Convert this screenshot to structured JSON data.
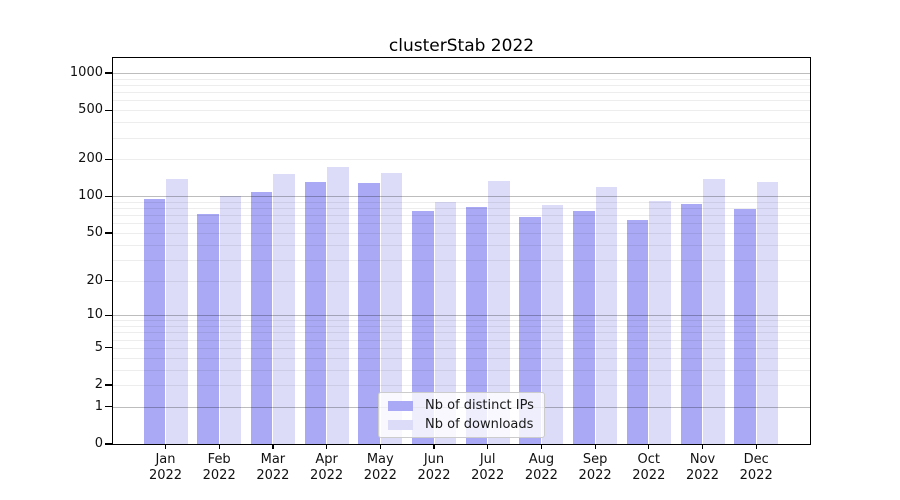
{
  "chart_data": {
    "type": "bar",
    "title": "clusterStab 2022",
    "categories": [
      "Jan",
      "Feb",
      "Mar",
      "Apr",
      "May",
      "Jun",
      "Jul",
      "Aug",
      "Sep",
      "Oct",
      "Nov",
      "Dec"
    ],
    "year_label": "2022",
    "series": [
      {
        "name": "Nb of distinct IPs",
        "color": "#a9a9f6",
        "values": [
          94,
          72,
          108,
          130,
          127,
          75,
          82,
          68,
          75,
          64,
          87,
          79
        ]
      },
      {
        "name": "Nb of downloads",
        "color": "#dcdcf9",
        "values": [
          137,
          100,
          153,
          172,
          155,
          90,
          134,
          85,
          119,
          92,
          137,
          130
        ]
      }
    ],
    "yscale": "log1p",
    "y_ticks": [
      1000,
      500,
      200,
      100,
      50,
      20,
      10,
      5,
      2,
      1,
      0
    ],
    "ylim": [
      0,
      1300
    ],
    "xlabel": "",
    "ylabel": "",
    "grid": "on",
    "legend_position": "lower-center",
    "colors": {
      "spine": "#000000",
      "tick_text": "#111111",
      "major_grid": "#bebebe",
      "minor_grid": "#ececec",
      "legend_border": "#cccccc"
    }
  }
}
